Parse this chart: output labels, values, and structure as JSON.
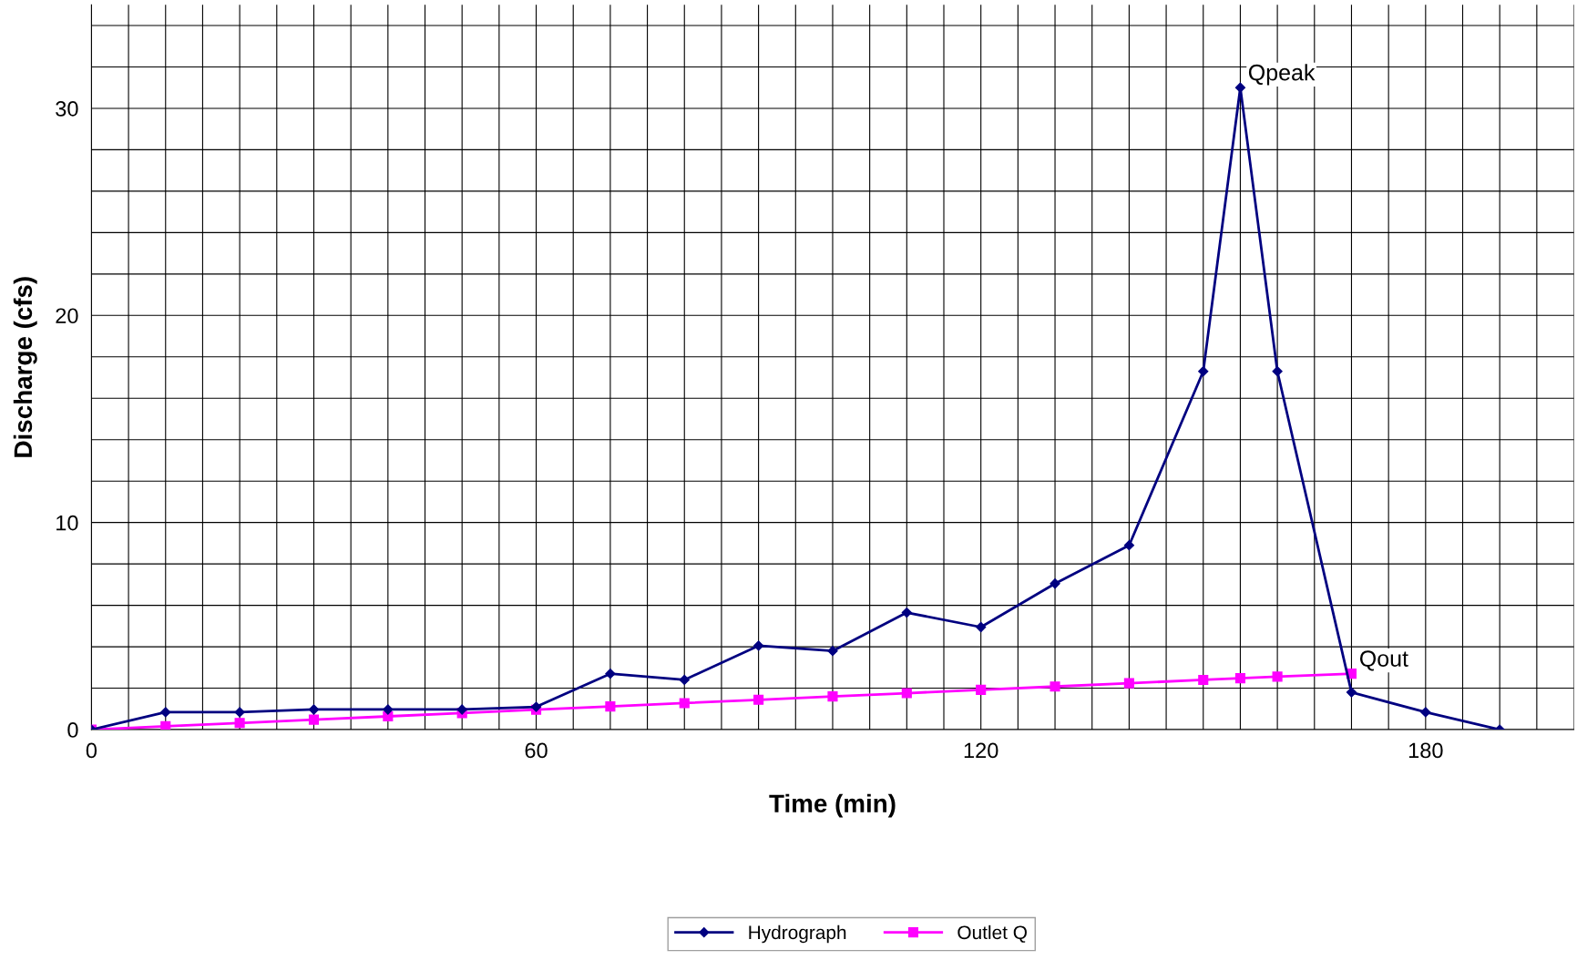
{
  "chart_data": {
    "type": "line",
    "xlabel": "Time (min)",
    "ylabel": "Discharge (cfs)",
    "series": [
      {
        "name": "Hydrograph",
        "color": "#000080",
        "marker": "diamond",
        "x": [
          0,
          10,
          20,
          30,
          40,
          50,
          60,
          70,
          80,
          90,
          100,
          110,
          120,
          130,
          140,
          150,
          155,
          160,
          170,
          180,
          190
        ],
        "values": [
          0,
          0.84,
          0.84,
          0.97,
          0.97,
          0.97,
          1.1,
          2.7,
          2.4,
          4.05,
          3.8,
          5.65,
          4.95,
          7.05,
          8.9,
          17.3,
          31.0,
          17.3,
          1.8,
          0.84,
          0
        ]
      },
      {
        "name": "Outlet Q",
        "color": "#ff00ff",
        "marker": "square",
        "x": [
          0,
          10,
          20,
          30,
          40,
          50,
          60,
          70,
          80,
          90,
          100,
          110,
          120,
          130,
          140,
          150,
          155,
          160,
          170
        ],
        "values": [
          0,
          0.16,
          0.32,
          0.48,
          0.64,
          0.8,
          0.96,
          1.12,
          1.28,
          1.44,
          1.6,
          1.76,
          1.92,
          2.08,
          2.24,
          2.4,
          2.48,
          2.56,
          2.7
        ]
      }
    ],
    "xlim": [
      0,
      200
    ],
    "xticks": [
      0,
      {
        "value": 5,
        "label": null
      },
      {
        "value": 10,
        "label": null
      },
      {
        "value": 15,
        "label": null
      },
      {
        "value": 20,
        "label": null
      },
      {
        "value": 25,
        "label": null
      },
      {
        "value": 30,
        "label": null
      },
      {
        "value": 35,
        "label": null
      },
      {
        "value": 40,
        "label": null
      },
      {
        "value": 45,
        "label": null
      },
      {
        "value": 50,
        "label": null
      },
      {
        "value": 55,
        "label": null
      },
      60,
      {
        "value": 65,
        "label": null
      },
      {
        "value": 70,
        "label": null
      },
      {
        "value": 75,
        "label": null
      },
      {
        "value": 80,
        "label": null
      },
      {
        "value": 85,
        "label": null
      },
      {
        "value": 90,
        "label": null
      },
      {
        "value": 95,
        "label": null
      },
      {
        "value": 100,
        "label": null
      },
      {
        "value": 105,
        "label": null
      },
      {
        "value": 110,
        "label": null
      },
      {
        "value": 115,
        "label": null
      },
      120,
      {
        "value": 125,
        "label": null
      },
      {
        "value": 130,
        "label": null
      },
      {
        "value": 135,
        "label": null
      },
      {
        "value": 140,
        "label": null
      },
      {
        "value": 145,
        "label": null
      },
      {
        "value": 150,
        "label": null
      },
      {
        "value": 155,
        "label": null
      },
      {
        "value": 160,
        "label": null
      },
      {
        "value": 165,
        "label": null
      },
      {
        "value": 170,
        "label": null
      },
      {
        "value": 175,
        "label": null
      },
      180,
      {
        "value": 185,
        "label": null
      },
      {
        "value": 190,
        "label": null
      },
      {
        "value": 195,
        "label": null
      },
      {
        "value": 200,
        "label": null
      }
    ],
    "ylim": [
      0,
      35
    ],
    "yticks": [
      0,
      {
        "value": 2,
        "label": null
      },
      {
        "value": 4,
        "label": null
      },
      {
        "value": 6,
        "label": null
      },
      {
        "value": 8,
        "label": null
      },
      10,
      {
        "value": 12,
        "label": null
      },
      {
        "value": 14,
        "label": null
      },
      {
        "value": 16,
        "label": null
      },
      {
        "value": 18,
        "label": null
      },
      20,
      {
        "value": 22,
        "label": null
      },
      {
        "value": 24,
        "label": null
      },
      {
        "value": 26,
        "label": null
      },
      {
        "value": 28,
        "label": null
      },
      30,
      {
        "value": 32,
        "label": null
      },
      {
        "value": 34,
        "label": null
      }
    ],
    "grid": true,
    "legend": "bottom",
    "line_style": "solid",
    "annotations": [
      {
        "text": "Qpeak",
        "x": 155,
        "y": 31.0
      },
      {
        "text": "Qout",
        "x": 170,
        "y": 2.7
      }
    ]
  }
}
